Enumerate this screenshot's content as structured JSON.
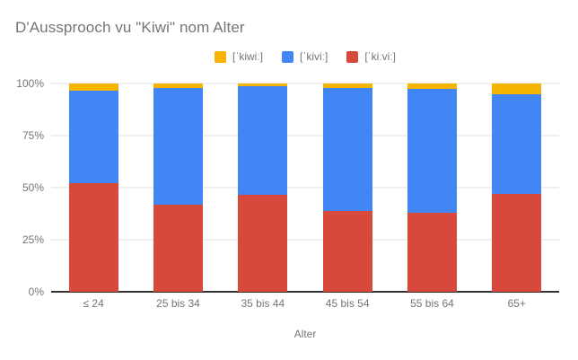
{
  "title": "D'Aussprooch vu \"Kiwi\" nom Alter",
  "legend": [
    {
      "label": "[ˈkiwiː]",
      "color": "#F4B400"
    },
    {
      "label": "[ˈkiviː]",
      "color": "#4285F4"
    },
    {
      "label": "[ˈkiːviː]",
      "color": "#D6493B"
    }
  ],
  "chart_data": {
    "type": "bar",
    "subtype": "percent-stacked-column",
    "title": "D'Aussprooch vu \"Kiwi\" nom Alter",
    "xlabel": "Alter",
    "ylabel": "",
    "ylim": [
      0,
      100
    ],
    "grid": true,
    "legend_position": "top-center",
    "categories": [
      "≤ 24",
      "25 bis 34",
      "35 bis 44",
      "45 bis 54",
      "55 bis 64",
      "65+"
    ],
    "series": [
      {
        "name": "[ˈkiwiː]",
        "color": "#F4B400",
        "values": [
          3.5,
          2,
          1.5,
          2,
          2.5,
          5
        ]
      },
      {
        "name": "[ˈkiviː]",
        "color": "#4285F4",
        "values": [
          44.5,
          56,
          52,
          59,
          59.5,
          48
        ]
      },
      {
        "name": "[ˈkiːviː]",
        "color": "#D6493B",
        "values": [
          52,
          42,
          46.5,
          39,
          38,
          47
        ]
      }
    ],
    "stack_order": "first series on top, last series at bottom",
    "y_ticks": [
      {
        "label": "100%",
        "value": 100
      },
      {
        "label": "75%",
        "value": 75
      },
      {
        "label": "50%",
        "value": 50
      },
      {
        "label": "25%",
        "value": 25
      },
      {
        "label": "0%",
        "value": 0
      }
    ],
    "colors": {
      "grid_line": "#e0e0e0",
      "axis_line": "#333333",
      "text": "#757575",
      "background": "#ffffff"
    }
  }
}
